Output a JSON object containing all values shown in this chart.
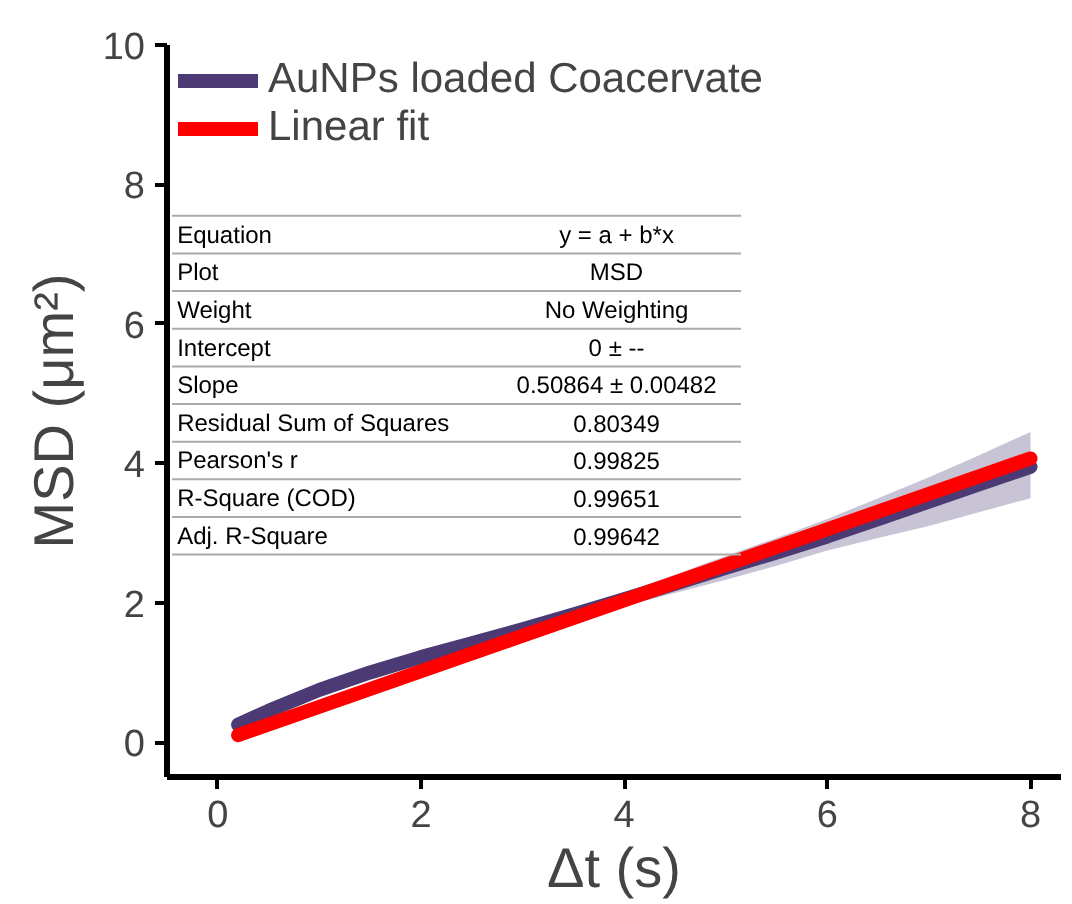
{
  "chart_data": {
    "type": "line",
    "xlabel": "Δt (s)",
    "ylabel": "MSD (μm²)",
    "xlim": [
      -0.5,
      8.3
    ],
    "ylim": [
      -0.5,
      10
    ],
    "xticks": [
      0,
      2,
      4,
      6,
      8
    ],
    "yticks": [
      0,
      2,
      4,
      6,
      8,
      10
    ],
    "grid": false,
    "legend": "top left",
    "line_style": "solid",
    "marker": "none",
    "series": [
      {
        "name": "AuNPs loaded Coacervate",
        "color": "#4b3a73",
        "x": [
          0.2,
          0.5,
          1,
          1.5,
          2,
          2.5,
          3,
          3.5,
          4,
          4.5,
          5,
          5.5,
          6,
          6.5,
          7,
          7.5,
          8
        ],
        "values": [
          0.25,
          0.45,
          0.75,
          1.0,
          1.22,
          1.42,
          1.62,
          1.83,
          2.05,
          2.27,
          2.5,
          2.72,
          2.95,
          3.2,
          3.45,
          3.7,
          3.95
        ],
        "lower": [
          0.22,
          0.42,
          0.72,
          0.96,
          1.18,
          1.37,
          1.56,
          1.75,
          1.95,
          2.14,
          2.33,
          2.53,
          2.75,
          2.93,
          3.1,
          3.3,
          3.5
        ],
        "upper": [
          0.28,
          0.48,
          0.78,
          1.04,
          1.26,
          1.47,
          1.68,
          1.91,
          2.15,
          2.4,
          2.67,
          2.93,
          3.2,
          3.5,
          3.8,
          4.12,
          4.45
        ]
      },
      {
        "name": "Linear fit",
        "color": "#ff0000",
        "x": [
          0.2,
          8
        ],
        "values": [
          0.1,
          4.07
        ]
      }
    ],
    "annotations": [
      "Equation",
      "y = a + b*x",
      "Plot",
      "MSD",
      "Weight",
      "No Weighting",
      "Intercept",
      "0 ± --",
      "Slope",
      "0.50864 ± 0.00482",
      "Residual Sum of Squares",
      "0.80349",
      "Pearson's r",
      "0.99825",
      "R-Square (COD)",
      "0.99651",
      "Adj. R-Square",
      "0.99642"
    ]
  }
}
